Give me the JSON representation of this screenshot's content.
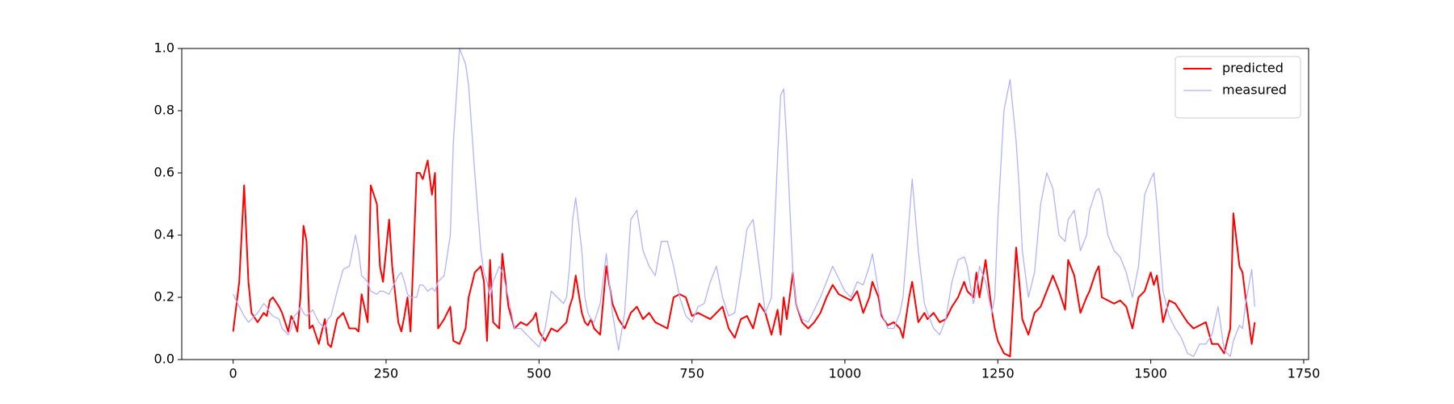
{
  "chart_data": {
    "type": "line",
    "x": [
      0,
      10,
      18,
      25,
      30,
      40,
      50,
      55,
      60,
      65,
      75,
      80,
      90,
      95,
      100,
      105,
      110,
      115,
      120,
      125,
      130,
      140,
      150,
      155,
      160,
      170,
      180,
      190,
      200,
      205,
      210,
      220,
      225,
      235,
      240,
      245,
      255,
      260,
      270,
      275,
      280,
      285,
      290,
      300,
      305,
      310,
      318,
      325,
      330,
      335,
      345,
      355,
      360,
      370,
      380,
      385,
      395,
      405,
      410,
      415,
      420,
      425,
      435,
      440,
      450,
      460,
      470,
      480,
      490,
      495,
      500,
      510,
      520,
      530,
      540,
      545,
      550,
      555,
      560,
      570,
      575,
      580,
      585,
      590,
      600,
      610,
      620,
      630,
      640,
      650,
      660,
      670,
      680,
      690,
      700,
      710,
      720,
      730,
      740,
      750,
      760,
      770,
      780,
      790,
      800,
      810,
      820,
      830,
      840,
      850,
      860,
      870,
      880,
      890,
      895,
      900,
      905,
      915,
      920,
      930,
      940,
      950,
      960,
      970,
      980,
      990,
      1000,
      1010,
      1020,
      1030,
      1040,
      1045,
      1055,
      1060,
      1070,
      1080,
      1090,
      1095,
      1105,
      1110,
      1120,
      1130,
      1135,
      1145,
      1155,
      1165,
      1175,
      1185,
      1195,
      1200,
      1210,
      1215,
      1220,
      1230,
      1240,
      1245,
      1250,
      1260,
      1270,
      1280,
      1285,
      1290,
      1300,
      1310,
      1320,
      1330,
      1340,
      1350,
      1360,
      1365,
      1375,
      1385,
      1395,
      1400,
      1410,
      1415,
      1420,
      1430,
      1440,
      1450,
      1460,
      1470,
      1480,
      1490,
      1500,
      1505,
      1510,
      1515,
      1520,
      1530,
      1540,
      1550,
      1560,
      1570,
      1580,
      1590,
      1600,
      1610,
      1620,
      1630,
      1635,
      1645,
      1650,
      1655,
      1665,
      1670
    ],
    "series": [
      {
        "name": "predicted",
        "color": "#ff0000",
        "values": [
          0.09,
          0.25,
          0.56,
          0.25,
          0.15,
          0.12,
          0.15,
          0.14,
          0.19,
          0.2,
          0.17,
          0.15,
          0.09,
          0.14,
          0.12,
          0.09,
          0.2,
          0.43,
          0.38,
          0.1,
          0.11,
          0.05,
          0.13,
          0.05,
          0.04,
          0.13,
          0.15,
          0.1,
          0.1,
          0.09,
          0.21,
          0.12,
          0.56,
          0.5,
          0.3,
          0.25,
          0.45,
          0.3,
          0.12,
          0.09,
          0.14,
          0.2,
          0.09,
          0.6,
          0.6,
          0.58,
          0.64,
          0.53,
          0.6,
          0.1,
          0.13,
          0.17,
          0.06,
          0.05,
          0.1,
          0.2,
          0.28,
          0.3,
          0.25,
          0.06,
          0.32,
          0.12,
          0.1,
          0.34,
          0.17,
          0.1,
          0.12,
          0.11,
          0.13,
          0.15,
          0.09,
          0.06,
          0.1,
          0.09,
          0.11,
          0.12,
          0.17,
          0.2,
          0.27,
          0.15,
          0.12,
          0.11,
          0.13,
          0.1,
          0.08,
          0.3,
          0.18,
          0.13,
          0.1,
          0.15,
          0.17,
          0.13,
          0.15,
          0.12,
          0.11,
          0.1,
          0.2,
          0.21,
          0.2,
          0.14,
          0.15,
          0.14,
          0.13,
          0.15,
          0.17,
          0.1,
          0.07,
          0.13,
          0.14,
          0.1,
          0.18,
          0.15,
          0.08,
          0.16,
          0.08,
          0.2,
          0.13,
          0.28,
          0.18,
          0.12,
          0.1,
          0.12,
          0.15,
          0.2,
          0.24,
          0.21,
          0.2,
          0.19,
          0.22,
          0.15,
          0.2,
          0.25,
          0.2,
          0.14,
          0.11,
          0.12,
          0.1,
          0.07,
          0.2,
          0.25,
          0.12,
          0.15,
          0.13,
          0.15,
          0.12,
          0.13,
          0.17,
          0.2,
          0.25,
          0.22,
          0.2,
          0.28,
          0.2,
          0.32,
          0.16,
          0.1,
          0.06,
          0.02,
          0.01,
          0.36,
          0.25,
          0.13,
          0.08,
          0.15,
          0.17,
          0.22,
          0.27,
          0.22,
          0.16,
          0.32,
          0.27,
          0.15,
          0.2,
          0.22,
          0.28,
          0.3,
          0.2,
          0.19,
          0.18,
          0.19,
          0.17,
          0.1,
          0.2,
          0.22,
          0.28,
          0.24,
          0.27,
          0.2,
          0.12,
          0.19,
          0.18,
          0.15,
          0.12,
          0.1,
          0.11,
          0.12,
          0.05,
          0.05,
          0.02,
          0.1,
          0.47,
          0.3,
          0.28,
          0.2,
          0.05,
          0.12
        ]
      },
      {
        "name": "measured",
        "color": "#b2b2ff",
        "values": [
          0.21,
          0.17,
          0.14,
          0.12,
          0.13,
          0.15,
          0.18,
          0.17,
          0.15,
          0.14,
          0.13,
          0.1,
          0.08,
          0.1,
          0.14,
          0.15,
          0.17,
          0.15,
          0.14,
          0.15,
          0.16,
          0.12,
          0.1,
          0.13,
          0.14,
          0.22,
          0.29,
          0.3,
          0.4,
          0.35,
          0.27,
          0.25,
          0.22,
          0.21,
          0.22,
          0.22,
          0.21,
          0.23,
          0.27,
          0.28,
          0.25,
          0.21,
          0.2,
          0.2,
          0.24,
          0.24,
          0.22,
          0.23,
          0.22,
          0.25,
          0.27,
          0.4,
          0.7,
          1.0,
          0.95,
          0.88,
          0.6,
          0.35,
          0.28,
          0.25,
          0.2,
          0.25,
          0.3,
          0.28,
          0.2,
          0.1,
          0.1,
          0.08,
          0.06,
          0.05,
          0.04,
          0.1,
          0.22,
          0.2,
          0.18,
          0.2,
          0.3,
          0.45,
          0.52,
          0.35,
          0.2,
          0.15,
          0.13,
          0.12,
          0.18,
          0.34,
          0.15,
          0.03,
          0.15,
          0.45,
          0.48,
          0.35,
          0.3,
          0.27,
          0.38,
          0.38,
          0.3,
          0.2,
          0.14,
          0.12,
          0.17,
          0.18,
          0.25,
          0.3,
          0.2,
          0.14,
          0.15,
          0.28,
          0.42,
          0.45,
          0.3,
          0.15,
          0.2,
          0.65,
          0.85,
          0.87,
          0.7,
          0.28,
          0.18,
          0.13,
          0.12,
          0.16,
          0.2,
          0.25,
          0.3,
          0.26,
          0.22,
          0.2,
          0.25,
          0.24,
          0.3,
          0.34,
          0.22,
          0.15,
          0.1,
          0.1,
          0.15,
          0.2,
          0.45,
          0.58,
          0.35,
          0.18,
          0.15,
          0.1,
          0.08,
          0.13,
          0.25,
          0.32,
          0.33,
          0.3,
          0.18,
          0.22,
          0.3,
          0.25,
          0.15,
          0.2,
          0.45,
          0.8,
          0.9,
          0.7,
          0.55,
          0.35,
          0.2,
          0.28,
          0.5,
          0.6,
          0.55,
          0.4,
          0.38,
          0.45,
          0.48,
          0.35,
          0.4,
          0.48,
          0.54,
          0.55,
          0.52,
          0.4,
          0.35,
          0.33,
          0.28,
          0.2,
          0.3,
          0.53,
          0.58,
          0.6,
          0.5,
          0.35,
          0.22,
          0.14,
          0.1,
          0.07,
          0.02,
          0.01,
          0.05,
          0.05,
          0.08,
          0.17,
          0.03,
          0.01,
          0.06,
          0.11,
          0.1,
          0.18,
          0.29,
          0.17
        ]
      }
    ],
    "xlim": [
      -84,
      1758
    ],
    "xticks": [
      0,
      250,
      500,
      750,
      1000,
      1250,
      1500,
      1750
    ],
    "ylim": [
      0,
      1
    ],
    "yticks": [
      {
        "value": 0,
        "label": "0.0"
      },
      0.2,
      0.4,
      0.6,
      0.8,
      {
        "value": 1,
        "label": "1.0"
      }
    ],
    "legend": "upper right",
    "grid": false
  }
}
